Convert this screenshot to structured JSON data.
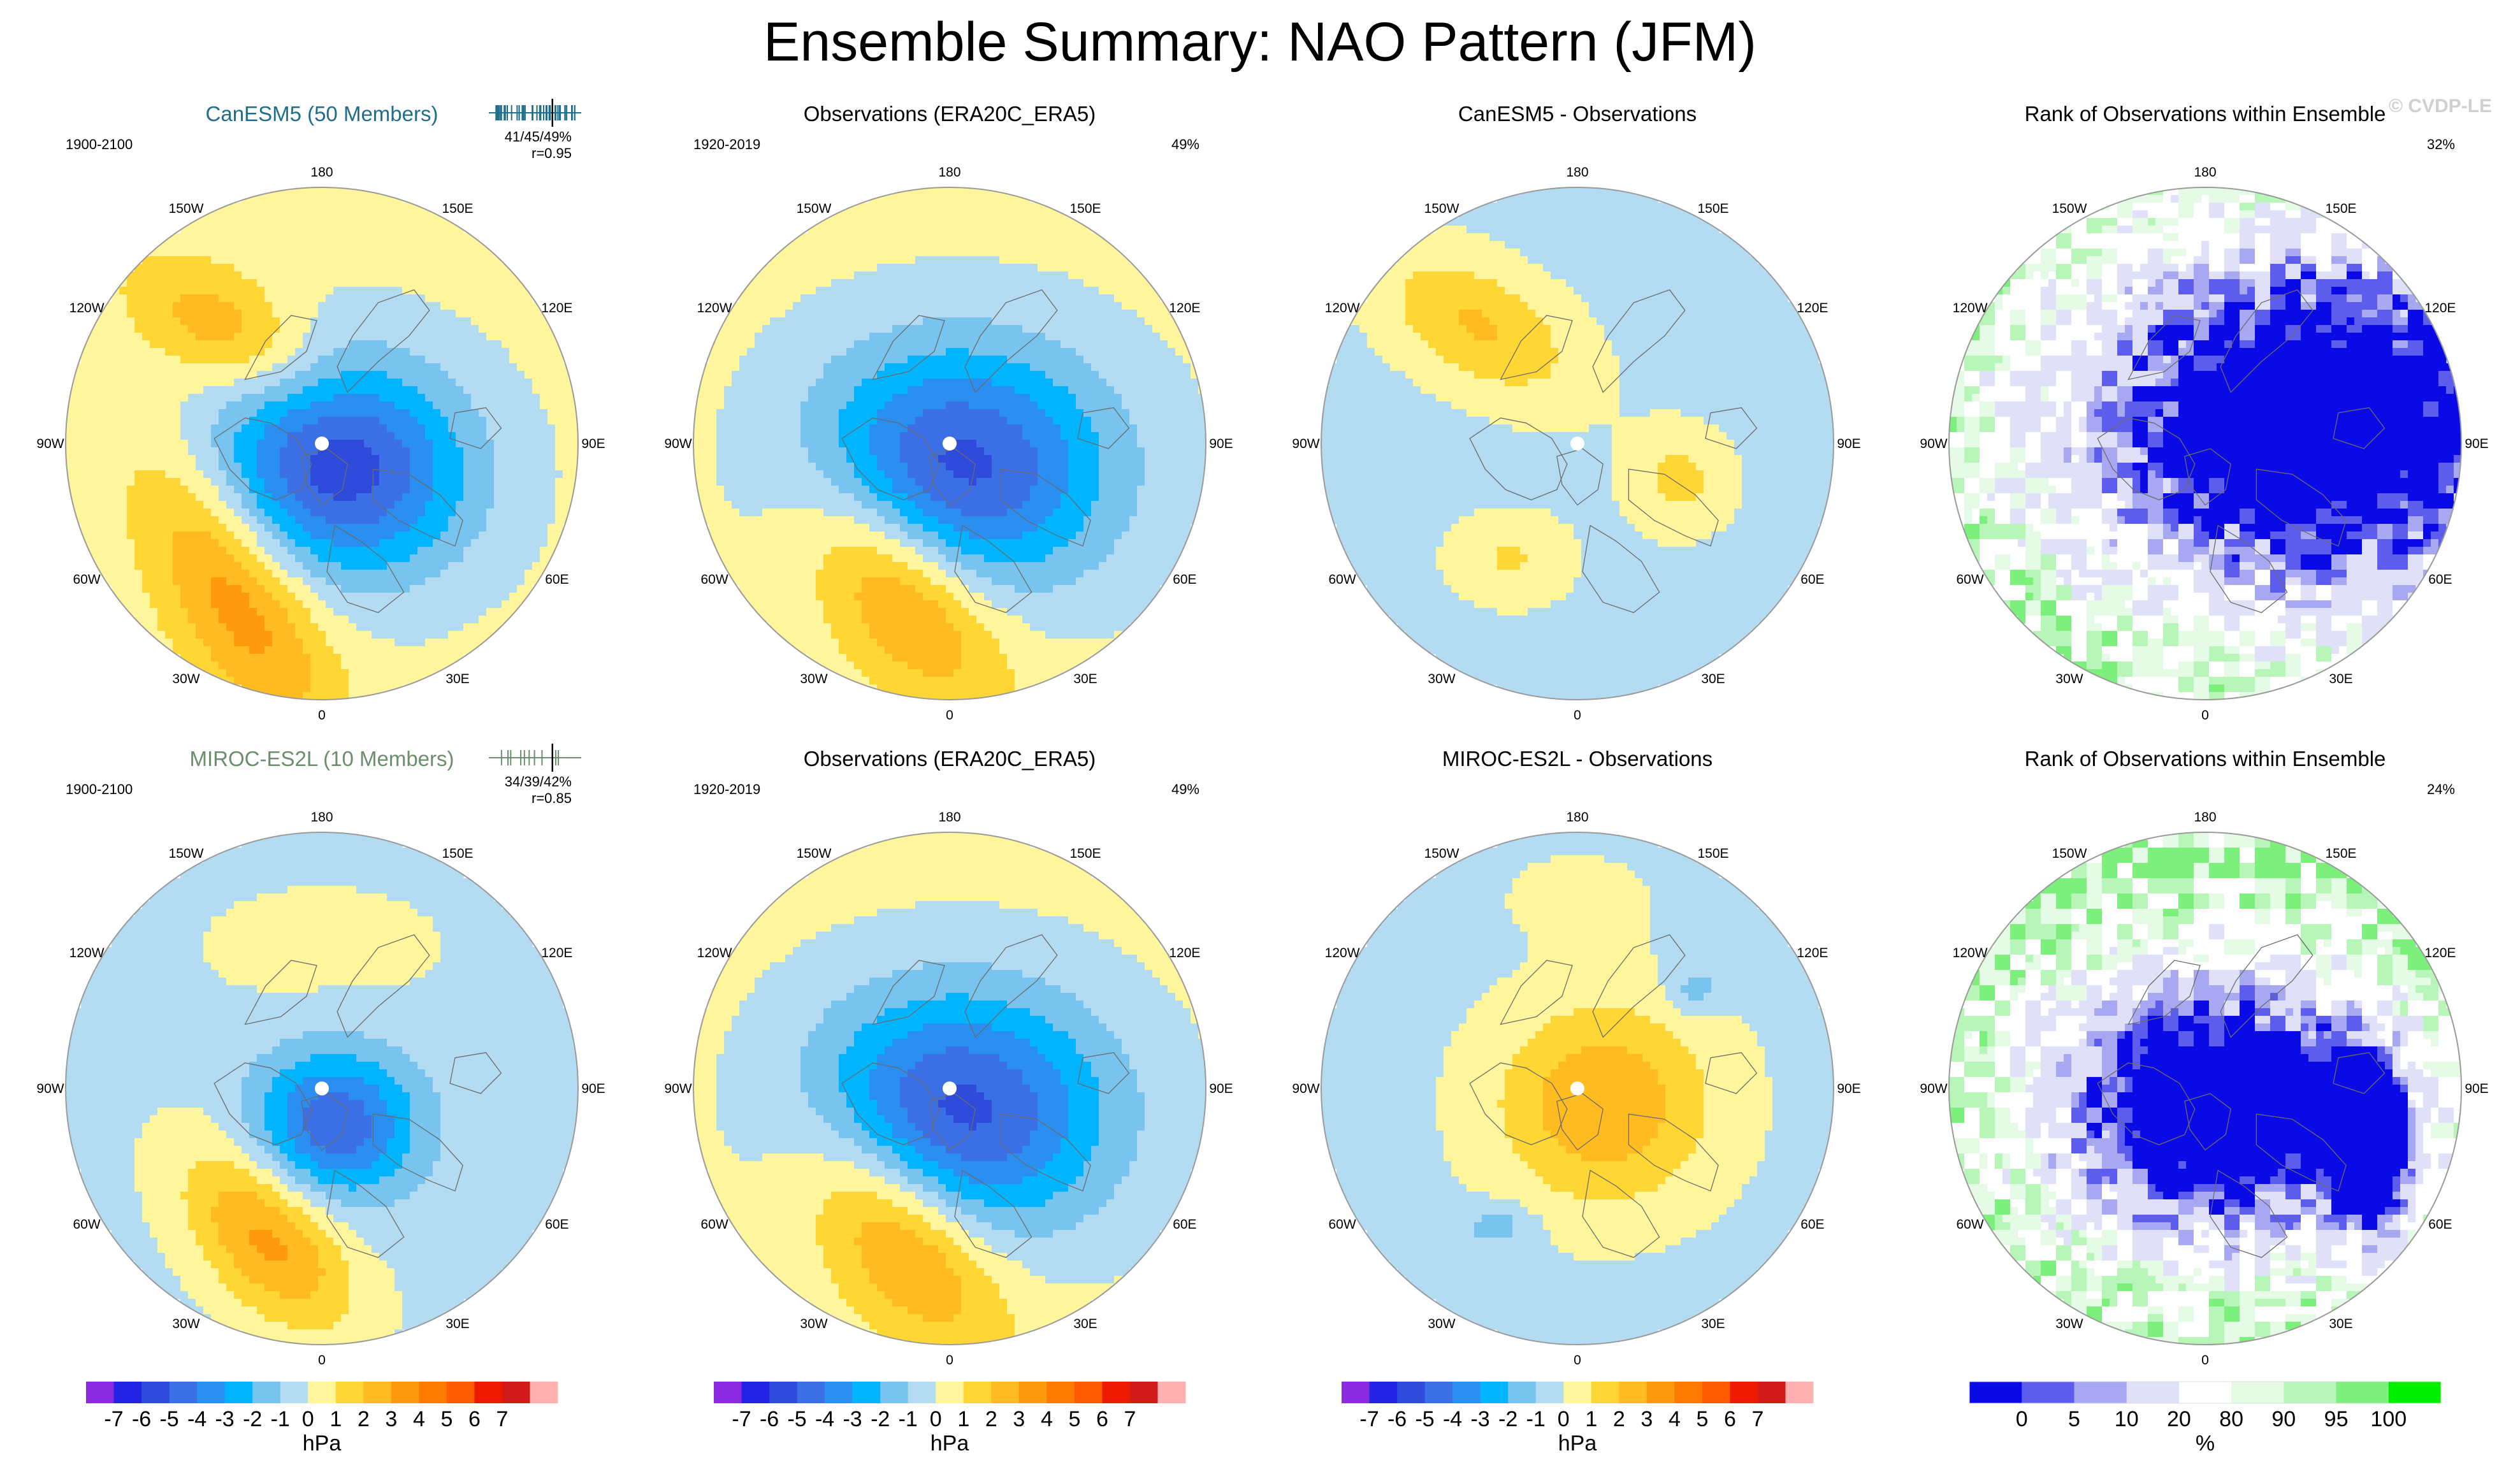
{
  "title": "Ensemble Summary: NAO Pattern (JFM)",
  "watermark": "© CVDP-LE",
  "rows": [
    {
      "panels": [
        {
          "kind": "model",
          "title": "CanESM5 (50 Members)",
          "period": "1900-2100",
          "stats1": "41/45/49%",
          "stats2": "r=0.95",
          "field": {
            "ocean": 0.3,
            "blobs": [
              {
                "angle": 220,
                "radius": 0.58,
                "sx": 0.28,
                "sy": 0.15,
                "rot": 30,
                "value": 2.5
              },
              {
                "angle": 330,
                "radius": 0.68,
                "sx": 0.42,
                "sy": 0.18,
                "rot": 60,
                "value": 3.5
              },
              {
                "angle": 40,
                "radius": 0.12,
                "sx": 0.35,
                "sy": 0.3,
                "rot": 10,
                "value": -5.8
              }
            ]
          }
        },
        {
          "kind": "obs",
          "title": "Observations (ERA20C_ERA5)",
          "period": "1920-2019",
          "pct": "49%",
          "field": {
            "ocean": 0.3,
            "blobs": [
              {
                "angle": 340,
                "radius": 0.6,
                "sx": 0.36,
                "sy": 0.2,
                "rot": 50,
                "value": 3.8
              },
              {
                "angle": 20,
                "radius": 0.1,
                "sx": 0.42,
                "sy": 0.34,
                "rot": 0,
                "value": -5.6
              }
            ]
          }
        },
        {
          "kind": "diff",
          "title": "CanESM5 - Observations",
          "field": {
            "ocean": -0.3,
            "blobs": [
              {
                "angle": 220,
                "radius": 0.6,
                "sx": 0.3,
                "sy": 0.16,
                "rot": 30,
                "value": 2.4
              },
              {
                "angle": 70,
                "radius": 0.42,
                "sx": 0.14,
                "sy": 0.14,
                "rot": 0,
                "value": 1.6
              },
              {
                "angle": 330,
                "radius": 0.52,
                "sx": 0.16,
                "sy": 0.12,
                "rot": 0,
                "value": 1.4
              }
            ]
          }
        },
        {
          "kind": "rank",
          "title": "Rank of Observations within Ensemble",
          "pct": "32%",
          "rank_seed": 7,
          "rank_blobs": [
            {
              "angle": 100,
              "radius": 0.45,
              "sx": 0.7,
              "sy": 0.5,
              "rot": 0,
              "value": -1
            }
          ]
        }
      ]
    },
    {
      "panels": [
        {
          "kind": "model",
          "title": "MIROC-ES2L (10 Members)",
          "period": "1900-2100",
          "stats1": "34/39/42%",
          "stats2": "r=0.85",
          "field": {
            "ocean": -0.3,
            "blobs": [
              {
                "angle": 340,
                "radius": 0.62,
                "sx": 0.3,
                "sy": 0.17,
                "rot": 50,
                "value": 3.6
              },
              {
                "angle": 20,
                "radius": 0.15,
                "sx": 0.22,
                "sy": 0.2,
                "rot": 0,
                "value": -4.5
              },
              {
                "angle": 180,
                "radius": 0.55,
                "sx": 0.4,
                "sy": 0.2,
                "rot": 0,
                "value": 0.6
              }
            ]
          }
        },
        {
          "kind": "obs",
          "title": "Observations (ERA20C_ERA5)",
          "period": "1920-2019",
          "pct": "49%",
          "field": {
            "ocean": 0.3,
            "blobs": [
              {
                "angle": 340,
                "radius": 0.6,
                "sx": 0.36,
                "sy": 0.2,
                "rot": 50,
                "value": 3.8
              },
              {
                "angle": 20,
                "radius": 0.1,
                "sx": 0.42,
                "sy": 0.34,
                "rot": 0,
                "value": -5.6
              }
            ]
          }
        },
        {
          "kind": "diff",
          "title": "MIROC-ES2L - Observations",
          "field": {
            "ocean": -0.3,
            "blobs": [
              {
                "angle": 60,
                "radius": 0.12,
                "sx": 0.3,
                "sy": 0.28,
                "rot": 0,
                "value": 3.2
              },
              {
                "angle": 180,
                "radius": 0.75,
                "sx": 0.2,
                "sy": 0.12,
                "rot": 0,
                "value": 0.7
              },
              {
                "angle": 130,
                "radius": 0.6,
                "sx": 0.08,
                "sy": 0.07,
                "rot": 0,
                "value": -1.4
              },
              {
                "angle": 330,
                "radius": 0.62,
                "sx": 0.1,
                "sy": 0.06,
                "rot": 0,
                "value": -1.4
              }
            ]
          }
        },
        {
          "kind": "rank",
          "title": "Rank of Observations within Ensemble",
          "pct": "24%",
          "rank_seed": 13,
          "rank_blobs": [
            {
              "angle": 40,
              "radius": 0.1,
              "sx": 0.48,
              "sy": 0.38,
              "rot": 0,
              "value": -1
            },
            {
              "angle": 70,
              "radius": 0.7,
              "sx": 0.1,
              "sy": 0.22,
              "rot": 0,
              "value": -0.9
            }
          ]
        }
      ]
    }
  ],
  "lon_labels": [
    "180",
    "150E",
    "120E",
    "90E",
    "60E",
    "30E",
    "0",
    "30W",
    "60W",
    "90W",
    "120W",
    "150W"
  ],
  "colorbars": [
    {
      "unit": "hPa",
      "tick_labels": [
        "-7",
        "-6",
        "-5",
        "-4",
        "-3",
        "-2",
        "-1",
        "0",
        "1",
        "2",
        "3",
        "4",
        "5",
        "6",
        "7"
      ]
    },
    {
      "unit": "hPa",
      "tick_labels": [
        "-7",
        "-6",
        "-5",
        "-4",
        "-3",
        "-2",
        "-1",
        "0",
        "1",
        "2",
        "3",
        "4",
        "5",
        "6",
        "7"
      ]
    },
    {
      "unit": "hPa",
      "tick_labels": [
        "-7",
        "-6",
        "-5",
        "-4",
        "-3",
        "-2",
        "-1",
        "0",
        "1",
        "2",
        "3",
        "4",
        "5",
        "6",
        "7"
      ]
    },
    {
      "unit": "%",
      "tick_labels": [
        "0",
        "5",
        "10",
        "20",
        "80",
        "90",
        "95",
        "100"
      ]
    }
  ],
  "colors": {
    "contour": [
      "#8a2be2",
      "#2323e6",
      "#2e4bdb",
      "#3a6fe6",
      "#2b8ff2",
      "#00b4ff",
      "#79c4ee",
      "#b3dcf2",
      "#fff59d",
      "#ffd633",
      "#ffbb1f",
      "#ff9a0d",
      "#ff7a00",
      "#ff5a00",
      "#ee1a00",
      "#d11a1a",
      "#ffb0b0"
    ],
    "rank": [
      "#0a0ae6",
      "#5c5ced",
      "#a8a8f2",
      "#e0e0f8",
      "#ffffff",
      "#e6fbe6",
      "#b8f5b8",
      "#7cef7c",
      "#00ee00"
    ]
  },
  "chart_data": {
    "type": "heatmap",
    "title": "Ensemble Summary: NAO Pattern (JFM)",
    "projection": "polar stereographic, North Pole",
    "units": "hPa",
    "contour_levels": [
      -7,
      -6,
      -5,
      -4,
      -3,
      -2,
      -1,
      0,
      1,
      2,
      3,
      4,
      5,
      6,
      7
    ],
    "rank_levels_percent": [
      0,
      5,
      10,
      20,
      80,
      90,
      95,
      100
    ],
    "panels": [
      {
        "title": "CanESM5 (50 Members)",
        "period": "1900-2100",
        "stats": "41/45/49%",
        "pattern_correlation": 0.95,
        "pct_variance_explained": [
          41,
          45,
          49
        ]
      },
      {
        "title": "Observations (ERA20C_ERA5)",
        "period": "1920-2019",
        "pct_variance_explained": 49
      },
      {
        "title": "CanESM5 - Observations"
      },
      {
        "title": "Rank of Observations within Ensemble",
        "pct_annotation": 32
      },
      {
        "title": "MIROC-ES2L (10 Members)",
        "period": "1900-2100",
        "stats": "34/39/42%",
        "pattern_correlation": 0.85,
        "pct_variance_explained": [
          34,
          39,
          42
        ]
      },
      {
        "title": "Observations (ERA20C_ERA5)",
        "period": "1920-2019",
        "pct_variance_explained": 49
      },
      {
        "title": "MIROC-ES2L - Observations"
      },
      {
        "title": "Rank of Observations within Ensemble",
        "pct_annotation": 24
      }
    ]
  }
}
